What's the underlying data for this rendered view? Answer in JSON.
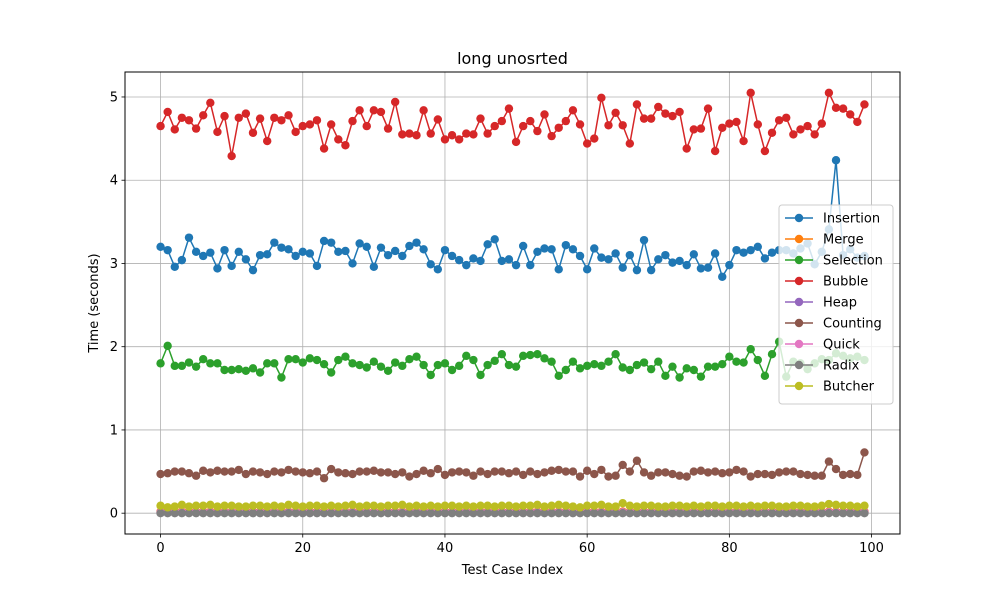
{
  "chart_data": {
    "type": "line",
    "title": "long unosrted",
    "xlabel": "Test Case Index",
    "ylabel": "Time (seconds)",
    "xlim": [
      -5,
      104
    ],
    "ylim": [
      -0.25,
      5.3
    ],
    "xticks": [
      0,
      20,
      40,
      60,
      80,
      100
    ],
    "yticks": [
      0,
      1,
      2,
      3,
      4,
      5
    ],
    "grid": true,
    "legend_position": "center-right",
    "marker": "circle",
    "series": [
      {
        "name": "Insertion",
        "color": "#1f77b4",
        "values": [
          3.2,
          3.16,
          2.96,
          3.04,
          3.31,
          3.14,
          3.09,
          3.13,
          2.94,
          3.16,
          2.97,
          3.14,
          3.05,
          2.92,
          3.1,
          3.11,
          3.25,
          3.19,
          3.17,
          3.09,
          3.14,
          3.12,
          2.97,
          3.27,
          3.25,
          3.14,
          3.15,
          3.0,
          3.24,
          3.2,
          2.96,
          3.19,
          3.1,
          3.15,
          3.09,
          3.21,
          3.25,
          3.17,
          2.99,
          2.93,
          3.16,
          3.09,
          3.04,
          2.98,
          3.06,
          3.03,
          3.23,
          3.29,
          3.03,
          3.05,
          2.98,
          3.21,
          2.98,
          3.14,
          3.18,
          3.17,
          2.93,
          3.22,
          3.17,
          3.09,
          2.93,
          3.18,
          3.07,
          3.05,
          3.12,
          2.95,
          3.1,
          2.92,
          3.28,
          2.92,
          3.05,
          3.1,
          3.01,
          3.03,
          2.98,
          3.11,
          2.94,
          2.95,
          3.12,
          2.84,
          2.98,
          3.16,
          3.13,
          3.16,
          3.2,
          3.06,
          3.13,
          3.16,
          3.16,
          3.12,
          3.18,
          3.24,
          2.99,
          3.14,
          3.41,
          4.24,
          3.1,
          3.17,
          3.07,
          3.09
        ]
      },
      {
        "name": "Merge",
        "color": "#ff7f0e",
        "values": [
          0.02,
          0.02,
          0.02,
          0.02,
          0.02,
          0.02,
          0.02,
          0.02,
          0.02,
          0.02,
          0.02,
          0.02,
          0.02,
          0.02,
          0.02,
          0.02,
          0.02,
          0.02,
          0.02,
          0.02,
          0.02,
          0.02,
          0.02,
          0.02,
          0.02,
          0.02,
          0.02,
          0.02,
          0.02,
          0.02,
          0.02,
          0.02,
          0.02,
          0.02,
          0.02,
          0.02,
          0.02,
          0.02,
          0.02,
          0.02,
          0.02,
          0.02,
          0.02,
          0.02,
          0.02,
          0.02,
          0.02,
          0.02,
          0.02,
          0.02,
          0.02,
          0.02,
          0.02,
          0.02,
          0.02,
          0.02,
          0.02,
          0.02,
          0.02,
          0.02,
          0.02,
          0.02,
          0.02,
          0.02,
          0.02,
          0.02,
          0.02,
          0.02,
          0.02,
          0.02,
          0.02,
          0.02,
          0.02,
          0.02,
          0.02,
          0.02,
          0.02,
          0.02,
          0.02,
          0.02,
          0.02,
          0.02,
          0.02,
          0.02,
          0.02,
          0.02,
          0.02,
          0.02,
          0.02,
          0.02,
          0.02,
          0.02,
          0.02,
          0.02,
          0.02,
          0.02,
          0.02,
          0.02,
          0.02,
          0.02
        ]
      },
      {
        "name": "Selection",
        "color": "#2ca02c",
        "values": [
          1.8,
          2.01,
          1.77,
          1.77,
          1.81,
          1.76,
          1.85,
          1.8,
          1.8,
          1.72,
          1.72,
          1.73,
          1.71,
          1.74,
          1.69,
          1.8,
          1.8,
          1.63,
          1.85,
          1.85,
          1.81,
          1.86,
          1.84,
          1.79,
          1.69,
          1.84,
          1.88,
          1.8,
          1.78,
          1.75,
          1.82,
          1.76,
          1.71,
          1.81,
          1.77,
          1.85,
          1.88,
          1.78,
          1.66,
          1.78,
          1.8,
          1.72,
          1.77,
          1.89,
          1.84,
          1.66,
          1.78,
          1.83,
          1.91,
          1.78,
          1.76,
          1.89,
          1.9,
          1.91,
          1.86,
          1.82,
          1.65,
          1.72,
          1.82,
          1.74,
          1.77,
          1.79,
          1.77,
          1.82,
          1.91,
          1.75,
          1.72,
          1.78,
          1.81,
          1.73,
          1.82,
          1.65,
          1.76,
          1.63,
          1.74,
          1.72,
          1.64,
          1.76,
          1.76,
          1.79,
          1.88,
          1.82,
          1.81,
          1.97,
          1.84,
          1.65,
          1.91,
          2.06,
          1.64,
          1.82,
          1.8,
          1.73,
          1.8,
          1.85,
          1.84,
          1.92,
          1.89,
          1.86,
          1.88,
          1.84
        ]
      },
      {
        "name": "Bubble",
        "color": "#d62728",
        "values": [
          4.65,
          4.82,
          4.61,
          4.75,
          4.72,
          4.62,
          4.78,
          4.93,
          4.58,
          4.77,
          4.29,
          4.75,
          4.8,
          4.57,
          4.74,
          4.47,
          4.75,
          4.72,
          4.78,
          4.58,
          4.65,
          4.67,
          4.72,
          4.38,
          4.67,
          4.49,
          4.42,
          4.71,
          4.84,
          4.65,
          4.84,
          4.82,
          4.62,
          4.94,
          4.55,
          4.56,
          4.54,
          4.84,
          4.56,
          4.73,
          4.49,
          4.54,
          4.49,
          4.56,
          4.55,
          4.74,
          4.56,
          4.65,
          4.71,
          4.86,
          4.46,
          4.65,
          4.71,
          4.59,
          4.79,
          4.53,
          4.63,
          4.71,
          4.84,
          4.67,
          4.44,
          4.5,
          4.99,
          4.66,
          4.81,
          4.66,
          4.44,
          4.91,
          4.74,
          4.74,
          4.88,
          4.8,
          4.77,
          4.82,
          4.38,
          4.61,
          4.62,
          4.86,
          4.35,
          4.63,
          4.68,
          4.7,
          4.47,
          5.05,
          4.67,
          4.35,
          4.57,
          4.72,
          4.75,
          4.55,
          4.61,
          4.65,
          4.55,
          4.68,
          5.05,
          4.87,
          4.86,
          4.79,
          4.7,
          4.91
        ]
      },
      {
        "name": "Heap",
        "color": "#9467bd",
        "values": [
          0.01,
          0.01,
          0.01,
          0.01,
          0.01,
          0.01,
          0.01,
          0.01,
          0.01,
          0.01,
          0.01,
          0.01,
          0.01,
          0.01,
          0.01,
          0.01,
          0.01,
          0.01,
          0.01,
          0.01,
          0.01,
          0.01,
          0.01,
          0.01,
          0.01,
          0.01,
          0.01,
          0.01,
          0.01,
          0.01,
          0.01,
          0.01,
          0.01,
          0.01,
          0.01,
          0.01,
          0.01,
          0.01,
          0.01,
          0.01,
          0.01,
          0.01,
          0.01,
          0.01,
          0.01,
          0.01,
          0.01,
          0.01,
          0.01,
          0.01,
          0.01,
          0.01,
          0.01,
          0.01,
          0.01,
          0.01,
          0.01,
          0.01,
          0.01,
          0.01,
          0.01,
          0.01,
          0.01,
          0.01,
          0.01,
          0.01,
          0.01,
          0.01,
          0.01,
          0.01,
          0.01,
          0.01,
          0.01,
          0.01,
          0.01,
          0.01,
          0.01,
          0.01,
          0.01,
          0.01,
          0.01,
          0.01,
          0.01,
          0.01,
          0.01,
          0.01,
          0.01,
          0.01,
          0.01,
          0.01,
          0.01,
          0.01,
          0.01,
          0.01,
          0.01,
          0.01,
          0.01,
          0.01,
          0.01,
          0.01
        ]
      },
      {
        "name": "Counting",
        "color": "#8c564b",
        "values": [
          0.47,
          0.48,
          0.5,
          0.5,
          0.48,
          0.45,
          0.51,
          0.49,
          0.51,
          0.5,
          0.5,
          0.52,
          0.47,
          0.5,
          0.49,
          0.47,
          0.5,
          0.49,
          0.52,
          0.5,
          0.49,
          0.48,
          0.5,
          0.42,
          0.53,
          0.49,
          0.48,
          0.47,
          0.5,
          0.5,
          0.51,
          0.49,
          0.49,
          0.47,
          0.49,
          0.44,
          0.47,
          0.51,
          0.48,
          0.53,
          0.46,
          0.49,
          0.5,
          0.49,
          0.45,
          0.5,
          0.47,
          0.5,
          0.5,
          0.48,
          0.5,
          0.46,
          0.5,
          0.47,
          0.49,
          0.51,
          0.52,
          0.5,
          0.5,
          0.44,
          0.51,
          0.47,
          0.52,
          0.44,
          0.45,
          0.58,
          0.5,
          0.63,
          0.49,
          0.45,
          0.49,
          0.49,
          0.47,
          0.45,
          0.44,
          0.5,
          0.51,
          0.49,
          0.5,
          0.48,
          0.49,
          0.52,
          0.5,
          0.44,
          0.47,
          0.47,
          0.46,
          0.49,
          0.5,
          0.5,
          0.47,
          0.46,
          0.45,
          0.45,
          0.62,
          0.53,
          0.46,
          0.47,
          0.46,
          0.73
        ]
      },
      {
        "name": "Quick",
        "color": "#e377c2",
        "values": [
          0.01,
          0.01,
          0.01,
          0.01,
          0.01,
          0.01,
          0.01,
          0.01,
          0.01,
          0.01,
          0.01,
          0.01,
          0.01,
          0.01,
          0.01,
          0.01,
          0.01,
          0.01,
          0.01,
          0.01,
          0.01,
          0.01,
          0.01,
          0.01,
          0.01,
          0.01,
          0.01,
          0.01,
          0.01,
          0.01,
          0.01,
          0.01,
          0.01,
          0.01,
          0.01,
          0.01,
          0.01,
          0.01,
          0.01,
          0.01,
          0.01,
          0.01,
          0.01,
          0.01,
          0.01,
          0.01,
          0.01,
          0.01,
          0.01,
          0.01,
          0.01,
          0.01,
          0.01,
          0.01,
          0.01,
          0.01,
          0.01,
          0.01,
          0.01,
          0.01,
          0.01,
          0.01,
          0.01,
          0.01,
          0.01,
          0.01,
          0.01,
          0.01,
          0.01,
          0.01,
          0.01,
          0.01,
          0.01,
          0.01,
          0.01,
          0.01,
          0.01,
          0.01,
          0.01,
          0.01,
          0.01,
          0.01,
          0.01,
          0.01,
          0.01,
          0.01,
          0.01,
          0.01,
          0.01,
          0.01,
          0.01,
          0.01,
          0.01,
          0.01,
          0.01,
          0.01,
          0.01,
          0.01,
          0.01,
          0.01
        ]
      },
      {
        "name": "Radix",
        "color": "#7f7f7f",
        "values": [
          0.0,
          0.0,
          0.0,
          0.0,
          0.0,
          0.0,
          0.0,
          0.0,
          0.0,
          0.0,
          0.0,
          0.0,
          0.0,
          0.0,
          0.0,
          0.0,
          0.0,
          0.0,
          0.0,
          0.0,
          0.0,
          0.0,
          0.0,
          0.0,
          0.0,
          0.0,
          0.0,
          0.0,
          0.0,
          0.0,
          0.0,
          0.0,
          0.0,
          0.0,
          0.0,
          0.0,
          0.0,
          0.0,
          0.0,
          0.0,
          0.0,
          0.0,
          0.0,
          0.0,
          0.0,
          0.0,
          0.0,
          0.0,
          0.0,
          0.0,
          0.0,
          0.0,
          0.0,
          0.0,
          0.0,
          0.0,
          0.0,
          0.0,
          0.0,
          0.0,
          0.0,
          0.0,
          0.0,
          0.0,
          0.0,
          0.0,
          0.0,
          0.0,
          0.0,
          0.0,
          0.0,
          0.0,
          0.0,
          0.0,
          0.0,
          0.0,
          0.0,
          0.0,
          0.0,
          0.0,
          0.0,
          0.0,
          0.0,
          0.0,
          0.0,
          0.0,
          0.0,
          0.0,
          0.0,
          0.0,
          0.0,
          0.0,
          0.0,
          0.0,
          0.0,
          0.0,
          0.0,
          0.0,
          0.0,
          0.0
        ]
      },
      {
        "name": "Butcher",
        "color": "#bcbd22",
        "values": [
          0.09,
          0.07,
          0.08,
          0.1,
          0.08,
          0.09,
          0.09,
          0.1,
          0.08,
          0.09,
          0.09,
          0.08,
          0.08,
          0.09,
          0.09,
          0.08,
          0.09,
          0.08,
          0.1,
          0.09,
          0.08,
          0.09,
          0.09,
          0.08,
          0.09,
          0.08,
          0.09,
          0.1,
          0.08,
          0.09,
          0.09,
          0.08,
          0.09,
          0.09,
          0.1,
          0.08,
          0.09,
          0.08,
          0.09,
          0.08,
          0.09,
          0.09,
          0.08,
          0.09,
          0.08,
          0.09,
          0.09,
          0.08,
          0.09,
          0.09,
          0.08,
          0.09,
          0.09,
          0.1,
          0.08,
          0.09,
          0.1,
          0.09,
          0.08,
          0.07,
          0.09,
          0.09,
          0.1,
          0.08,
          0.08,
          0.12,
          0.09,
          0.08,
          0.09,
          0.09,
          0.08,
          0.08,
          0.09,
          0.09,
          0.08,
          0.09,
          0.08,
          0.09,
          0.09,
          0.08,
          0.09,
          0.09,
          0.08,
          0.09,
          0.08,
          0.09,
          0.09,
          0.08,
          0.08,
          0.09,
          0.09,
          0.08,
          0.08,
          0.09,
          0.11,
          0.1,
          0.09,
          0.09,
          0.08,
          0.09
        ]
      }
    ]
  }
}
